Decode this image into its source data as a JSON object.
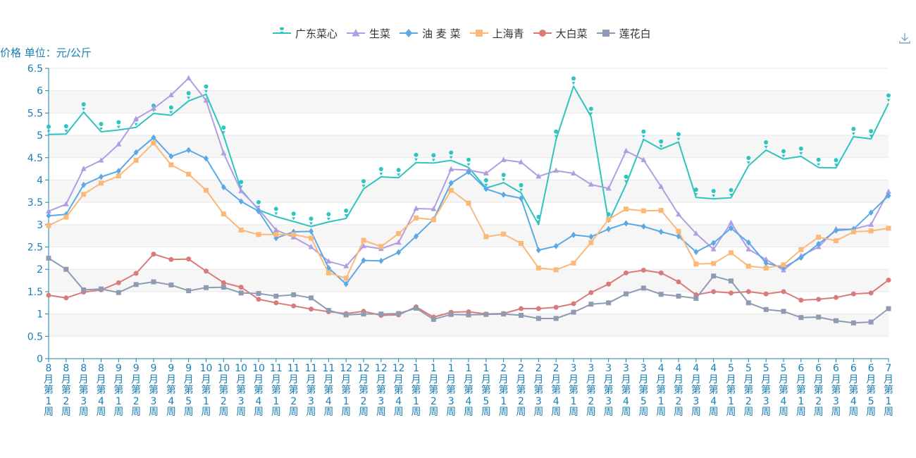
{
  "chart_data": {
    "type": "line",
    "ylabel": "价格 单位：元/公斤",
    "ylim": [
      0,
      6.5
    ],
    "yticks": [
      "0",
      "0.5",
      "1",
      "1.5",
      "2",
      "2.5",
      "3",
      "3.5",
      "4",
      "4.5",
      "5",
      "5.5",
      "6",
      "6.5"
    ],
    "grid": "horizontal bands",
    "legend_position": "top-center",
    "categories": [
      "8月第1周",
      "8月第2周",
      "8月第3周",
      "8月第4周",
      "9月第1周",
      "9月第2周",
      "9月第3周",
      "9月第4周",
      "9月第5周",
      "10月第1周",
      "10月第2周",
      "10月第3周",
      "10月第4周",
      "11月第1周",
      "11月第2周",
      "11月第3周",
      "11月第4周",
      "12月第1周",
      "12月第2周",
      "12月第3周",
      "12月第4周",
      "1月第1周",
      "1月第2周",
      "1月第3周",
      "1月第4周",
      "1月第5周",
      "2月第1周",
      "2月第2周",
      "2月第3周",
      "2月第4周",
      "3月第1周",
      "3月第2周",
      "3月第3周",
      "3月第4周",
      "3月第5周",
      "4月第1周",
      "4月第2周",
      "4月第3周",
      "4月第4周",
      "5月第1周",
      "5月第2周",
      "5月第3周",
      "5月第4周",
      "6月第1周",
      "6月第2周",
      "6月第3周",
      "6月第4周",
      "6月第5周",
      "7月第1周"
    ],
    "series": [
      {
        "name": "广东菜心",
        "color": "#2ec4c0",
        "symbol": "pin",
        "values": [
          5.02,
          5.03,
          5.52,
          5.08,
          5.12,
          5.18,
          5.49,
          5.45,
          5.77,
          5.92,
          5.0,
          3.78,
          3.33,
          3.18,
          3.07,
          2.96,
          3.06,
          3.14,
          3.8,
          4.07,
          4.05,
          4.39,
          4.38,
          4.44,
          4.28,
          3.82,
          3.94,
          3.71,
          3.0,
          4.91,
          6.1,
          5.42,
          3.06,
          3.9,
          4.91,
          4.69,
          4.85,
          3.61,
          3.58,
          3.6,
          4.32,
          4.67,
          4.47,
          4.53,
          4.28,
          4.27,
          4.97,
          4.92,
          5.72
        ]
      },
      {
        "name": "生菜",
        "color": "#b29de3",
        "symbol": "triangle",
        "values": [
          3.3,
          3.46,
          4.25,
          4.44,
          4.8,
          5.37,
          5.6,
          5.9,
          6.28,
          5.78,
          4.6,
          3.75,
          3.35,
          2.88,
          2.72,
          2.5,
          2.18,
          2.07,
          2.52,
          2.46,
          2.6,
          3.36,
          3.35,
          4.24,
          4.22,
          4.15,
          4.45,
          4.4,
          4.08,
          4.21,
          4.15,
          3.9,
          3.81,
          4.65,
          4.45,
          3.85,
          3.23,
          2.8,
          2.45,
          3.04,
          2.45,
          2.22,
          1.98,
          2.3,
          2.5,
          2.9,
          2.9,
          3.0,
          3.74
        ]
      },
      {
        "name": "油 麦 菜",
        "color": "#5aa9e6",
        "symbol": "diamond",
        "values": [
          3.2,
          3.23,
          3.89,
          4.07,
          4.2,
          4.62,
          4.95,
          4.53,
          4.67,
          4.48,
          3.84,
          3.52,
          3.3,
          2.7,
          2.84,
          2.85,
          2.03,
          1.67,
          2.2,
          2.19,
          2.38,
          2.74,
          3.12,
          3.93,
          4.18,
          3.8,
          3.67,
          3.59,
          2.43,
          2.52,
          2.77,
          2.73,
          2.9,
          3.03,
          2.96,
          2.84,
          2.74,
          2.39,
          2.59,
          2.92,
          2.6,
          2.14,
          2.04,
          2.26,
          2.57,
          2.87,
          2.9,
          3.27,
          3.65
        ]
      },
      {
        "name": "上海青",
        "color": "#fbb878",
        "symbol": "square",
        "values": [
          2.98,
          3.17,
          3.68,
          3.93,
          4.09,
          4.44,
          4.83,
          4.34,
          4.13,
          3.77,
          3.24,
          2.88,
          2.78,
          2.78,
          2.78,
          2.7,
          1.92,
          1.8,
          2.65,
          2.51,
          2.8,
          3.15,
          3.11,
          3.77,
          3.48,
          2.73,
          2.79,
          2.58,
          2.03,
          1.99,
          2.14,
          2.6,
          3.12,
          3.35,
          3.31,
          3.32,
          2.85,
          2.12,
          2.13,
          2.37,
          2.07,
          2.03,
          2.1,
          2.44,
          2.72,
          2.64,
          2.84,
          2.86,
          2.92
        ]
      },
      {
        "name": "大白菜",
        "color": "#d97b7b",
        "symbol": "circle",
        "values": [
          1.42,
          1.36,
          1.49,
          1.54,
          1.7,
          1.91,
          2.34,
          2.22,
          2.23,
          1.96,
          1.7,
          1.6,
          1.33,
          1.25,
          1.18,
          1.11,
          1.05,
          1.01,
          1.06,
          0.97,
          0.98,
          1.16,
          0.93,
          1.04,
          1.05,
          1.0,
          1.01,
          1.12,
          1.12,
          1.15,
          1.23,
          1.48,
          1.67,
          1.92,
          1.98,
          1.92,
          1.72,
          1.43,
          1.5,
          1.47,
          1.5,
          1.45,
          1.5,
          1.31,
          1.33,
          1.37,
          1.45,
          1.47,
          1.76
        ]
      },
      {
        "name": "莲花白",
        "color": "#8f9bb3",
        "symbol": "square",
        "values": [
          2.25,
          2.0,
          1.54,
          1.56,
          1.48,
          1.66,
          1.72,
          1.65,
          1.52,
          1.59,
          1.6,
          1.47,
          1.46,
          1.4,
          1.43,
          1.36,
          1.08,
          0.98,
          1.0,
          1.0,
          1.01,
          1.13,
          0.88,
          0.99,
          0.98,
          0.99,
          1.0,
          0.97,
          0.9,
          0.9,
          1.04,
          1.22,
          1.25,
          1.45,
          1.58,
          1.44,
          1.4,
          1.35,
          1.85,
          1.74,
          1.25,
          1.1,
          1.06,
          0.92,
          0.93,
          0.85,
          0.8,
          0.82,
          1.12
        ]
      }
    ]
  },
  "toolbar": {
    "download_icon": "download-icon"
  }
}
